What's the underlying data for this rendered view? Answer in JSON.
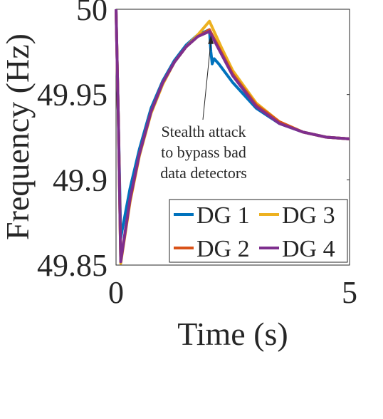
{
  "chart_data": {
    "type": "line",
    "xlabel": "Time (s)",
    "ylabel": "Frequency (Hz)",
    "xlim": [
      0,
      5
    ],
    "ylim": [
      49.85,
      50
    ],
    "x_ticks": [
      "0",
      "5"
    ],
    "y_ticks": [
      "49.85",
      "49.9",
      "49.95",
      "50"
    ],
    "grid": false,
    "legend_position": "bottom-right",
    "annotation": {
      "lines": [
        "Stealth attack",
        "to bypass bad",
        "data detectors"
      ],
      "points_to": {
        "x": 2.0,
        "y": 49.988
      }
    },
    "series": [
      {
        "name": "DG 1",
        "color": "#0072BD",
        "points": [
          [
            0,
            50
          ],
          [
            0.05,
            49.935
          ],
          [
            0.1,
            49.866
          ],
          [
            0.3,
            49.895
          ],
          [
            0.5,
            49.918
          ],
          [
            0.75,
            49.942
          ],
          [
            1.0,
            49.958
          ],
          [
            1.25,
            49.97
          ],
          [
            1.5,
            49.979
          ],
          [
            1.75,
            49.985
          ],
          [
            2.0,
            49.988
          ],
          [
            2.03,
            49.975
          ],
          [
            2.06,
            49.968
          ],
          [
            2.1,
            49.971
          ],
          [
            2.2,
            49.968
          ],
          [
            2.5,
            49.957
          ],
          [
            3.0,
            49.942
          ],
          [
            3.5,
            49.933
          ],
          [
            4.0,
            49.928
          ],
          [
            4.5,
            49.925
          ],
          [
            5.0,
            49.924
          ]
        ]
      },
      {
        "name": "DG 2",
        "color": "#D95319",
        "points": [
          [
            0,
            50
          ],
          [
            0.05,
            49.935
          ],
          [
            0.1,
            49.852
          ],
          [
            0.3,
            49.888
          ],
          [
            0.5,
            49.915
          ],
          [
            0.75,
            49.94
          ],
          [
            1.0,
            49.957
          ],
          [
            1.25,
            49.969
          ],
          [
            1.5,
            49.978
          ],
          [
            1.75,
            49.984
          ],
          [
            2.0,
            49.988
          ],
          [
            2.25,
            49.975
          ],
          [
            2.5,
            49.962
          ],
          [
            3.0,
            49.944
          ],
          [
            3.5,
            49.934
          ],
          [
            4.0,
            49.928
          ],
          [
            4.5,
            49.925
          ],
          [
            5.0,
            49.924
          ]
        ]
      },
      {
        "name": "DG 3",
        "color": "#EDB120",
        "points": [
          [
            0,
            50
          ],
          [
            0.05,
            49.935
          ],
          [
            0.1,
            49.851
          ],
          [
            0.3,
            49.887
          ],
          [
            0.5,
            49.914
          ],
          [
            0.75,
            49.939
          ],
          [
            1.0,
            49.956
          ],
          [
            1.25,
            49.969
          ],
          [
            1.5,
            49.978
          ],
          [
            1.75,
            49.985
          ],
          [
            2.0,
            49.993
          ],
          [
            2.25,
            49.978
          ],
          [
            2.5,
            49.964
          ],
          [
            3.0,
            49.945
          ],
          [
            3.5,
            49.934
          ],
          [
            4.0,
            49.928
          ],
          [
            4.5,
            49.925
          ],
          [
            5.0,
            49.924
          ]
        ]
      },
      {
        "name": "DG 4",
        "color": "#7E2F8E",
        "points": [
          [
            0,
            50
          ],
          [
            0.05,
            49.935
          ],
          [
            0.1,
            49.852
          ],
          [
            0.3,
            49.889
          ],
          [
            0.5,
            49.915
          ],
          [
            0.75,
            49.94
          ],
          [
            1.0,
            49.957
          ],
          [
            1.25,
            49.969
          ],
          [
            1.5,
            49.978
          ],
          [
            1.75,
            49.984
          ],
          [
            2.0,
            49.987
          ],
          [
            2.25,
            49.974
          ],
          [
            2.5,
            49.961
          ],
          [
            3.0,
            49.943
          ],
          [
            3.5,
            49.933
          ],
          [
            4.0,
            49.928
          ],
          [
            4.5,
            49.925
          ],
          [
            5.0,
            49.924
          ]
        ]
      }
    ]
  }
}
